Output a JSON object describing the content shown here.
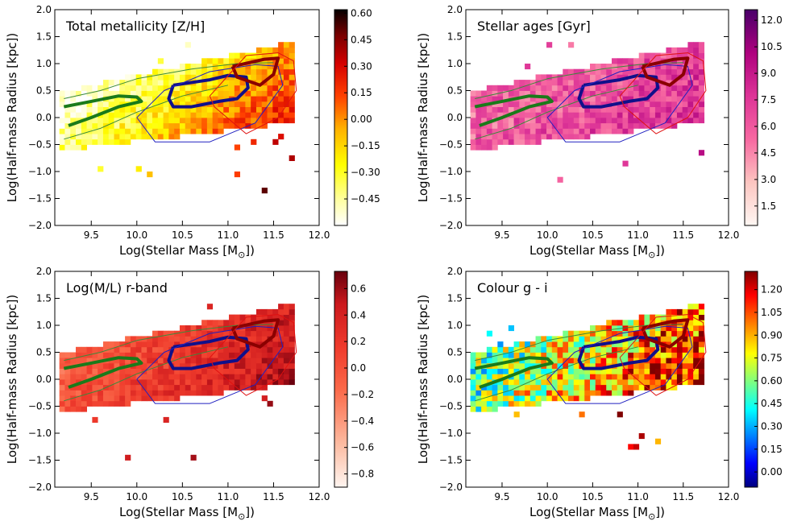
{
  "figure": {
    "xlabel": "Log(Stellar Mass [M",
    "xlabel_sub": "⊙",
    "xlabel_end": "])",
    "ylabel": "Log(Half-mass Radius [kpc])"
  },
  "chart_data": [
    {
      "type": "heatmap",
      "title": "Total metallicity [Z/H]",
      "xlim": [
        9.1,
        12.0
      ],
      "ylim": [
        -2.0,
        2.0
      ],
      "xticks": [
        "9.5",
        "10.0",
        "10.5",
        "11.0",
        "11.5",
        "12.0"
      ],
      "yticks": [
        "2.0",
        "1.5",
        "1.0",
        "0.5",
        "0.0",
        "−0.5",
        "−1.0",
        "−1.5",
        "−2.0"
      ],
      "colormap": "hot_r",
      "colorbar_range": [
        -0.6,
        0.62
      ],
      "colorbar_ticks": [
        "0.60",
        "0.45",
        "0.30",
        "0.15",
        "0.00",
        "−0.15",
        "−0.30",
        "−0.45"
      ]
    },
    {
      "type": "heatmap",
      "title": "Stellar ages [Gyr]",
      "xlim": [
        9.1,
        12.0
      ],
      "ylim": [
        -2.0,
        2.0
      ],
      "xticks": [
        "9.5",
        "10.0",
        "10.5",
        "11.0",
        "11.5",
        "12.0"
      ],
      "yticks": [
        "2.0",
        "1.5",
        "1.0",
        "0.5",
        "0.0",
        "−0.5",
        "−1.0",
        "−1.5",
        "−2.0"
      ],
      "colormap": "RdPu",
      "colorbar_range": [
        0.4,
        12.6
      ],
      "colorbar_ticks": [
        "12.0",
        "10.5",
        "9.0",
        "7.5",
        "6.0",
        "4.5",
        "3.0",
        "1.5"
      ]
    },
    {
      "type": "heatmap",
      "title": "Log(M/L) r-band",
      "xlim": [
        9.1,
        12.0
      ],
      "ylim": [
        -2.0,
        2.0
      ],
      "xticks": [
        "9.5",
        "10.0",
        "10.5",
        "11.0",
        "11.5",
        "12.0"
      ],
      "yticks": [
        "2.0",
        "1.5",
        "1.0",
        "0.5",
        "0.0",
        "−0.5",
        "−1.0",
        "−1.5",
        "−2.0"
      ],
      "colormap": "Reds",
      "colorbar_range": [
        -0.9,
        0.73
      ],
      "colorbar_ticks": [
        "0.6",
        "0.4",
        "0.2",
        "0.0",
        "−0.2",
        "−0.4",
        "−0.6",
        "−0.8"
      ]
    },
    {
      "type": "heatmap",
      "title": "Colour g - i",
      "xlim": [
        9.1,
        12.0
      ],
      "ylim": [
        -2.0,
        2.0
      ],
      "xticks": [
        "9.5",
        "10.0",
        "10.5",
        "11.0",
        "11.5",
        "12.0"
      ],
      "yticks": [
        "2.0",
        "1.5",
        "1.0",
        "0.5",
        "0.0",
        "−0.5",
        "−1.0",
        "−1.5",
        "−2.0"
      ],
      "colormap": "jet",
      "colorbar_range": [
        -0.1,
        1.32
      ],
      "colorbar_ticks": [
        "1.20",
        "1.05",
        "0.90",
        "0.75",
        "0.60",
        "0.45",
        "0.30",
        "0.15",
        "0.00"
      ]
    }
  ],
  "contours": {
    "green_thick": [
      [
        9.2,
        0.2
      ],
      [
        9.5,
        0.3
      ],
      [
        9.8,
        0.4
      ],
      [
        10.0,
        0.38
      ],
      [
        10.05,
        0.3
      ],
      [
        9.8,
        0.2
      ],
      [
        9.5,
        0.0
      ],
      [
        9.25,
        -0.15
      ]
    ],
    "green_thin_upper": [
      [
        9.2,
        0.35
      ],
      [
        9.6,
        0.5
      ],
      [
        10.0,
        0.72
      ],
      [
        10.6,
        0.9
      ],
      [
        11.1,
        1.0
      ],
      [
        11.5,
        1.02
      ]
    ],
    "green_thin_lower": [
      [
        9.2,
        -0.4
      ],
      [
        9.6,
        -0.2
      ],
      [
        10.0,
        0.1
      ],
      [
        10.5,
        0.4
      ],
      [
        11.0,
        0.6
      ]
    ],
    "blue_thick": [
      [
        10.4,
        0.6
      ],
      [
        10.8,
        0.7
      ],
      [
        11.0,
        0.78
      ],
      [
        11.2,
        0.75
      ],
      [
        11.22,
        0.55
      ],
      [
        11.1,
        0.35
      ],
      [
        10.9,
        0.3
      ],
      [
        10.6,
        0.2
      ],
      [
        10.4,
        0.2
      ],
      [
        10.35,
        0.35
      ],
      [
        10.4,
        0.6
      ]
    ],
    "blue_thin": [
      [
        10.0,
        0.0
      ],
      [
        10.3,
        0.5
      ],
      [
        10.8,
        0.85
      ],
      [
        11.3,
        0.98
      ],
      [
        11.55,
        0.95
      ],
      [
        11.6,
        0.6
      ],
      [
        11.3,
        -0.1
      ],
      [
        10.8,
        -0.45
      ],
      [
        10.2,
        -0.45
      ],
      [
        10.0,
        0.0
      ]
    ],
    "red_thick": [
      [
        11.05,
        0.95
      ],
      [
        11.4,
        1.08
      ],
      [
        11.55,
        1.1
      ],
      [
        11.5,
        0.8
      ],
      [
        11.35,
        0.6
      ],
      [
        11.1,
        0.75
      ],
      [
        11.05,
        0.95
      ]
    ],
    "red_thin": [
      [
        10.8,
        0.4
      ],
      [
        11.2,
        1.15
      ],
      [
        11.55,
        1.2
      ],
      [
        11.72,
        1.05
      ],
      [
        11.75,
        0.5
      ],
      [
        11.55,
        0.0
      ],
      [
        11.2,
        -0.3
      ],
      [
        10.85,
        0.2
      ],
      [
        10.8,
        0.4
      ]
    ]
  }
}
